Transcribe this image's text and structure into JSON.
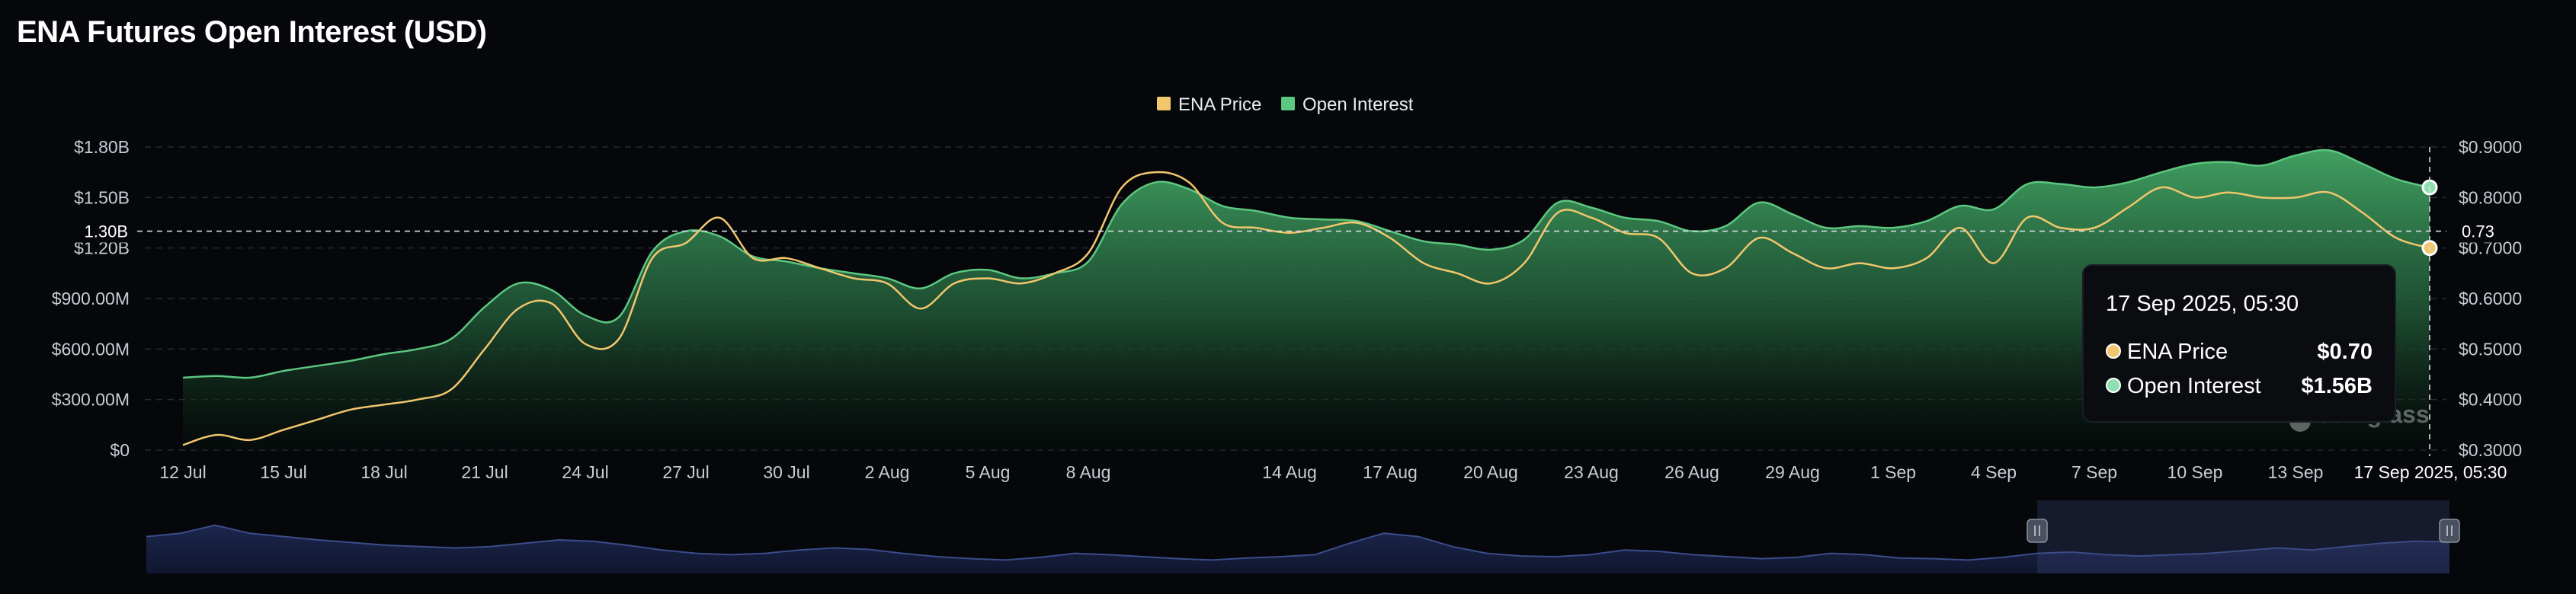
{
  "title": "ENA Futures Open Interest (USD)",
  "colors": {
    "background": "#05070b",
    "price": "#f2c66d",
    "open_interest": "#3fb36a",
    "oi_fill_top": "#3f9a5c",
    "grid": "#2a2e36",
    "navigator_fill": "#1b2340",
    "navigator_line": "#3b4c8a"
  },
  "chart_data": {
    "type": "area",
    "title": "ENA Futures Open Interest (USD)",
    "legend_position": "top-center",
    "grid": true,
    "x": [
      "12 Jul",
      "13 Jul",
      "14 Jul",
      "15 Jul",
      "16 Jul",
      "17 Jul",
      "18 Jul",
      "19 Jul",
      "20 Jul",
      "21 Jul",
      "22 Jul",
      "23 Jul",
      "24 Jul",
      "25 Jul",
      "26 Jul",
      "27 Jul",
      "28 Jul",
      "29 Jul",
      "30 Jul",
      "31 Jul",
      "1 Aug",
      "2 Aug",
      "3 Aug",
      "4 Aug",
      "5 Aug",
      "6 Aug",
      "7 Aug",
      "8 Aug",
      "9 Aug",
      "10 Aug",
      "11 Aug",
      "12 Aug",
      "13 Aug",
      "14 Aug",
      "15 Aug",
      "16 Aug",
      "17 Aug",
      "18 Aug",
      "19 Aug",
      "20 Aug",
      "21 Aug",
      "22 Aug",
      "23 Aug",
      "24 Aug",
      "25 Aug",
      "26 Aug",
      "27 Aug",
      "28 Aug",
      "29 Aug",
      "30 Aug",
      "31 Aug",
      "1 Sep",
      "2 Sep",
      "3 Sep",
      "4 Sep",
      "5 Sep",
      "6 Sep",
      "7 Sep",
      "8 Sep",
      "9 Sep",
      "10 Sep",
      "11 Sep",
      "12 Sep",
      "13 Sep",
      "14 Sep",
      "15 Sep",
      "16 Sep",
      "17 Sep"
    ],
    "x_tick_labels": [
      "12 Jul",
      "15 Jul",
      "18 Jul",
      "21 Jul",
      "24 Jul",
      "27 Jul",
      "30 Jul",
      "2 Aug",
      "5 Aug",
      "8 Aug",
      "14 Aug",
      "17 Aug",
      "20 Aug",
      "23 Aug",
      "26 Aug",
      "29 Aug",
      "1 Sep",
      "4 Sep",
      "7 Sep",
      "10 Sep",
      "13 Sep"
    ],
    "series": [
      {
        "name": "Open Interest",
        "axis": "left",
        "values": [
          0.43,
          0.44,
          0.43,
          0.47,
          0.5,
          0.53,
          0.57,
          0.6,
          0.66,
          0.85,
          0.99,
          0.95,
          0.8,
          0.79,
          1.18,
          1.3,
          1.27,
          1.15,
          1.12,
          1.08,
          1.05,
          1.02,
          0.96,
          1.05,
          1.07,
          1.02,
          1.05,
          1.12,
          1.46,
          1.59,
          1.55,
          1.45,
          1.42,
          1.38,
          1.37,
          1.36,
          1.3,
          1.24,
          1.22,
          1.19,
          1.25,
          1.47,
          1.44,
          1.38,
          1.36,
          1.3,
          1.33,
          1.47,
          1.4,
          1.32,
          1.33,
          1.32,
          1.36,
          1.45,
          1.43,
          1.58,
          1.58,
          1.56,
          1.59,
          1.65,
          1.7,
          1.71,
          1.69,
          1.75,
          1.78,
          1.7,
          1.61,
          1.56
        ]
      },
      {
        "name": "ENA Price",
        "axis": "right",
        "values": [
          0.31,
          0.33,
          0.32,
          0.34,
          0.36,
          0.38,
          0.39,
          0.4,
          0.42,
          0.5,
          0.58,
          0.59,
          0.51,
          0.52,
          0.68,
          0.71,
          0.76,
          0.68,
          0.68,
          0.66,
          0.64,
          0.63,
          0.58,
          0.63,
          0.64,
          0.63,
          0.65,
          0.69,
          0.82,
          0.85,
          0.83,
          0.75,
          0.74,
          0.73,
          0.74,
          0.75,
          0.72,
          0.67,
          0.65,
          0.63,
          0.67,
          0.77,
          0.76,
          0.73,
          0.72,
          0.65,
          0.66,
          0.72,
          0.69,
          0.66,
          0.67,
          0.66,
          0.68,
          0.74,
          0.67,
          0.76,
          0.74,
          0.74,
          0.78,
          0.82,
          0.8,
          0.81,
          0.8,
          0.8,
          0.81,
          0.77,
          0.72,
          0.7
        ]
      }
    ],
    "y_left": {
      "ticks": [
        "$0",
        "$300.00M",
        "$600.00M",
        "$900.00M",
        "$1.20B",
        "$1.50B",
        "$1.80B"
      ],
      "ylim": [
        0,
        1.8
      ],
      "unit": "B USD"
    },
    "y_right": {
      "ticks": [
        "$0.3000",
        "$0.4000",
        "$0.5000",
        "$0.6000",
        "$0.7000",
        "$0.8000",
        "$0.9000"
      ],
      "ylim": [
        0.3,
        0.9
      ]
    },
    "crosshair": {
      "left_label": "1.30B",
      "left_value": 1.3,
      "right_label": "0.73",
      "right_value": 0.73
    }
  },
  "legend": [
    {
      "label": "ENA Price",
      "color": "#f2c66d"
    },
    {
      "label": "Open Interest",
      "color": "#5cc77f"
    }
  ],
  "tooltip": {
    "date": "17 Sep 2025, 05:30",
    "rows": [
      {
        "label": "ENA Price",
        "value": "$0.70",
        "color": "#f2c66d"
      },
      {
        "label": "Open Interest",
        "value": "$1.56B",
        "color": "#8fe0b0"
      }
    ]
  },
  "hover_date_label": "17 Sep 2025, 05:30",
  "watermark": "coinglass",
  "navigator": {
    "values": [
      0.55,
      0.6,
      0.72,
      0.6,
      0.55,
      0.5,
      0.46,
      0.42,
      0.4,
      0.38,
      0.4,
      0.45,
      0.5,
      0.48,
      0.42,
      0.35,
      0.3,
      0.28,
      0.3,
      0.35,
      0.38,
      0.36,
      0.3,
      0.25,
      0.22,
      0.2,
      0.24,
      0.3,
      0.28,
      0.25,
      0.22,
      0.2,
      0.23,
      0.25,
      0.28,
      0.45,
      0.6,
      0.55,
      0.4,
      0.3,
      0.26,
      0.25,
      0.28,
      0.35,
      0.33,
      0.28,
      0.25,
      0.22,
      0.24,
      0.3,
      0.28,
      0.23,
      0.22,
      0.2,
      0.24,
      0.3,
      0.32,
      0.28,
      0.26,
      0.28,
      0.3,
      0.34,
      0.38,
      0.35,
      0.4,
      0.45,
      0.48,
      0.47
    ],
    "selection_start": 0.821,
    "selection_end": 1.0
  }
}
